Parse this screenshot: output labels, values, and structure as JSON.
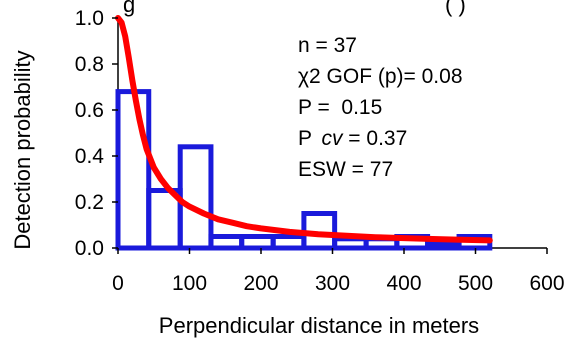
{
  "chart_data": {
    "type": "bar",
    "title": "g",
    "title_tail": "(         )",
    "xlabel": "Perpendicular distance in meters",
    "ylabel": "Detection probability",
    "xlim": [
      0,
      600
    ],
    "ylim": [
      0,
      1.0
    ],
    "x_ticks": [
      "0",
      "100",
      "200",
      "300",
      "400",
      "500",
      "600"
    ],
    "y_ticks": [
      "0.0",
      "0.2",
      "0.4",
      "0.6",
      "0.8",
      "1.0"
    ],
    "grid": false,
    "histogram": {
      "bin_edges": [
        0,
        43,
        87,
        130,
        173,
        217,
        260,
        303,
        347,
        390,
        433,
        477,
        520
      ],
      "values": [
        0.68,
        0.25,
        0.44,
        0.05,
        0.05,
        0.05,
        0.15,
        0.04,
        0.04,
        0.05,
        0.02,
        0.05
      ],
      "color": "#1a1adb"
    },
    "curve": {
      "x": [
        0,
        5,
        10,
        15,
        20,
        25,
        30,
        35,
        40,
        45,
        50,
        60,
        70,
        80,
        90,
        100,
        120,
        140,
        160,
        180,
        200,
        240,
        280,
        320,
        360,
        400,
        440,
        480,
        520
      ],
      "y": [
        1.0,
        0.98,
        0.92,
        0.83,
        0.73,
        0.64,
        0.56,
        0.49,
        0.43,
        0.39,
        0.35,
        0.3,
        0.26,
        0.23,
        0.2,
        0.18,
        0.15,
        0.125,
        0.11,
        0.095,
        0.085,
        0.07,
        0.06,
        0.053,
        0.047,
        0.043,
        0.039,
        0.036,
        0.033
      ],
      "color": "#ff0000"
    },
    "annotations": [
      "n = 37",
      "χ2 GOF (p)= 0.08",
      "P =  0.15",
      "ESW = 77"
    ],
    "cv_annotation": {
      "prefix": "P ",
      "italic": "cv",
      "suffix": " = 0.37"
    }
  }
}
